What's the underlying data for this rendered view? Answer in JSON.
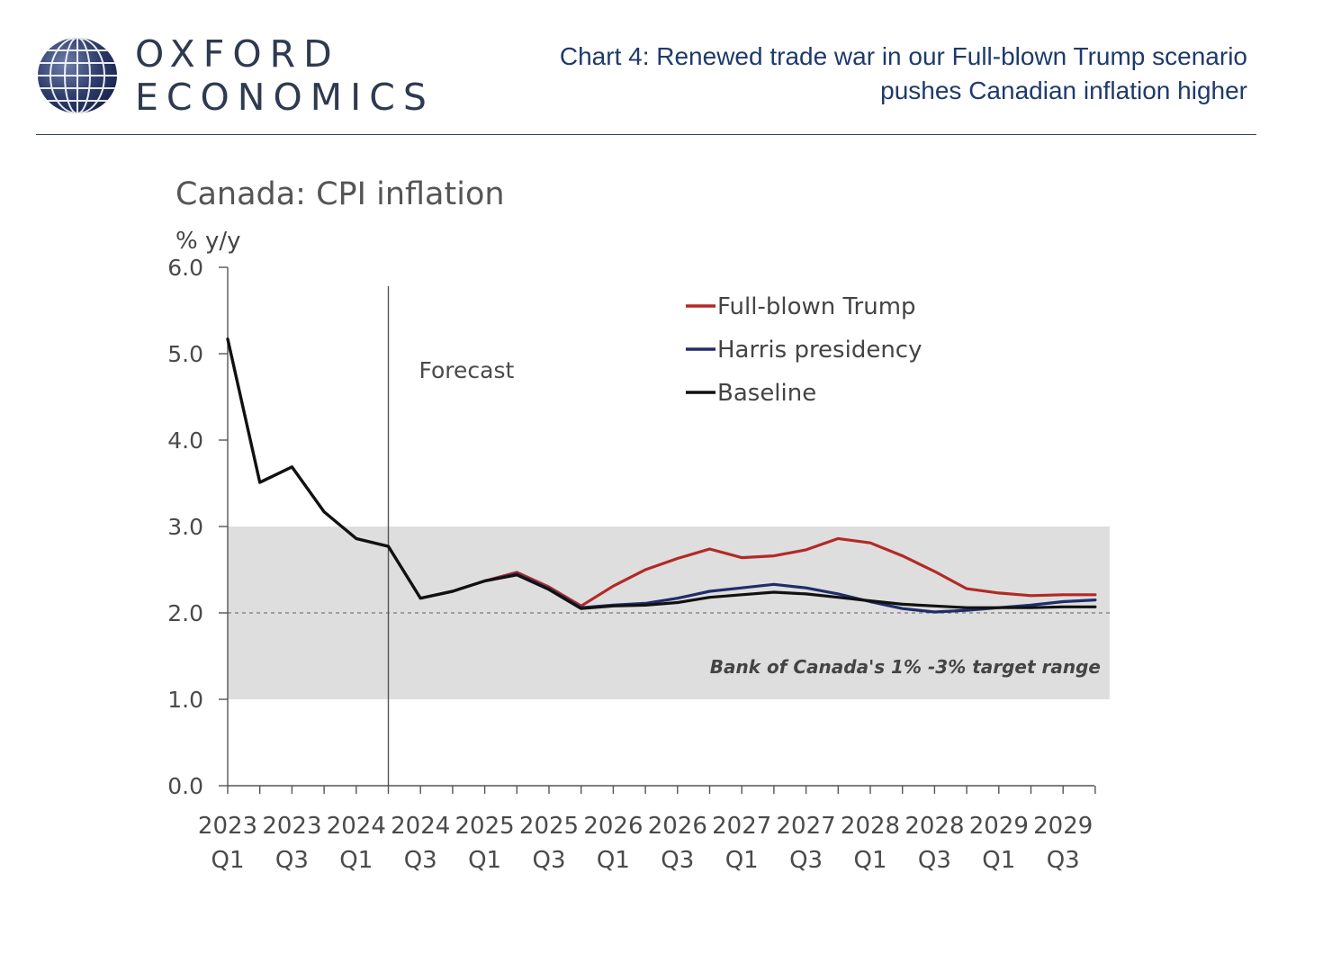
{
  "brand": {
    "line1": "OXFORD",
    "line2": "ECONOMICS"
  },
  "header": {
    "title_line1": "Chart 4: Renewed trade war in our Full-blown Trump scenario",
    "title_line2": "pushes Canadian inflation higher"
  },
  "colors": {
    "trump": "#b22a25",
    "harris": "#1f2d6b",
    "baseline": "#111111",
    "band": "#dedede",
    "title_text": "#1f3a6b",
    "axis_text": "#4a4a4a"
  },
  "chart_data": {
    "type": "line",
    "title": "Canada: CPI inflation",
    "ylabel": "% y/y",
    "ylim": [
      0,
      6
    ],
    "yticks": [
      "0.0",
      "1.0",
      "2.0",
      "3.0",
      "4.0",
      "5.0",
      "6.0"
    ],
    "x": [
      "2023Q1",
      "2023Q2",
      "2023Q3",
      "2023Q4",
      "2024Q1",
      "2024Q2",
      "2024Q3",
      "2024Q4",
      "2025Q1",
      "2025Q2",
      "2025Q3",
      "2025Q4",
      "2026Q1",
      "2026Q2",
      "2026Q3",
      "2026Q4",
      "2027Q1",
      "2027Q2",
      "2027Q3",
      "2027Q4",
      "2028Q1",
      "2028Q2",
      "2028Q3",
      "2028Q4",
      "2029Q1",
      "2029Q2",
      "2029Q3",
      "2029Q4"
    ],
    "xtick_labels": [
      {
        "year": "2023",
        "q": "Q1"
      },
      {
        "year": "2023",
        "q": "Q3"
      },
      {
        "year": "2024",
        "q": "Q1"
      },
      {
        "year": "2024",
        "q": "Q3"
      },
      {
        "year": "2025",
        "q": "Q1"
      },
      {
        "year": "2025",
        "q": "Q3"
      },
      {
        "year": "2026",
        "q": "Q1"
      },
      {
        "year": "2026",
        "q": "Q3"
      },
      {
        "year": "2027",
        "q": "Q1"
      },
      {
        "year": "2027",
        "q": "Q3"
      },
      {
        "year": "2028",
        "q": "Q1"
      },
      {
        "year": "2028",
        "q": "Q3"
      },
      {
        "year": "2029",
        "q": "Q1"
      },
      {
        "year": "2029",
        "q": "Q3"
      }
    ],
    "forecast_label": "Forecast",
    "forecast_start": "2024Q2",
    "target_band": {
      "low": 1.0,
      "high": 3.0,
      "mid": 2.0,
      "label": "Bank of Canada's 1% -3% target range"
    },
    "legend": {
      "position": "top-right"
    },
    "grid": false,
    "series": [
      {
        "name": "Full-blown Trump",
        "key": "trump",
        "values": [
          5.17,
          3.51,
          3.69,
          3.17,
          2.86,
          2.77,
          2.17,
          2.25,
          2.37,
          2.47,
          2.3,
          2.08,
          2.31,
          2.5,
          2.63,
          2.74,
          2.64,
          2.66,
          2.73,
          2.86,
          2.81,
          2.66,
          2.48,
          2.28,
          2.23,
          2.2,
          2.21,
          2.21
        ]
      },
      {
        "name": "Harris presidency",
        "key": "harris",
        "values": [
          5.17,
          3.51,
          3.69,
          3.17,
          2.86,
          2.77,
          2.17,
          2.25,
          2.37,
          2.45,
          2.28,
          2.06,
          2.09,
          2.11,
          2.17,
          2.25,
          2.29,
          2.33,
          2.29,
          2.22,
          2.13,
          2.05,
          2.01,
          2.03,
          2.06,
          2.09,
          2.13,
          2.15
        ]
      },
      {
        "name": "Baseline",
        "key": "baseline",
        "values": [
          5.17,
          3.51,
          3.69,
          3.17,
          2.86,
          2.77,
          2.17,
          2.25,
          2.37,
          2.44,
          2.27,
          2.05,
          2.08,
          2.09,
          2.12,
          2.18,
          2.21,
          2.24,
          2.22,
          2.18,
          2.14,
          2.1,
          2.08,
          2.06,
          2.06,
          2.06,
          2.07,
          2.07
        ]
      }
    ]
  }
}
